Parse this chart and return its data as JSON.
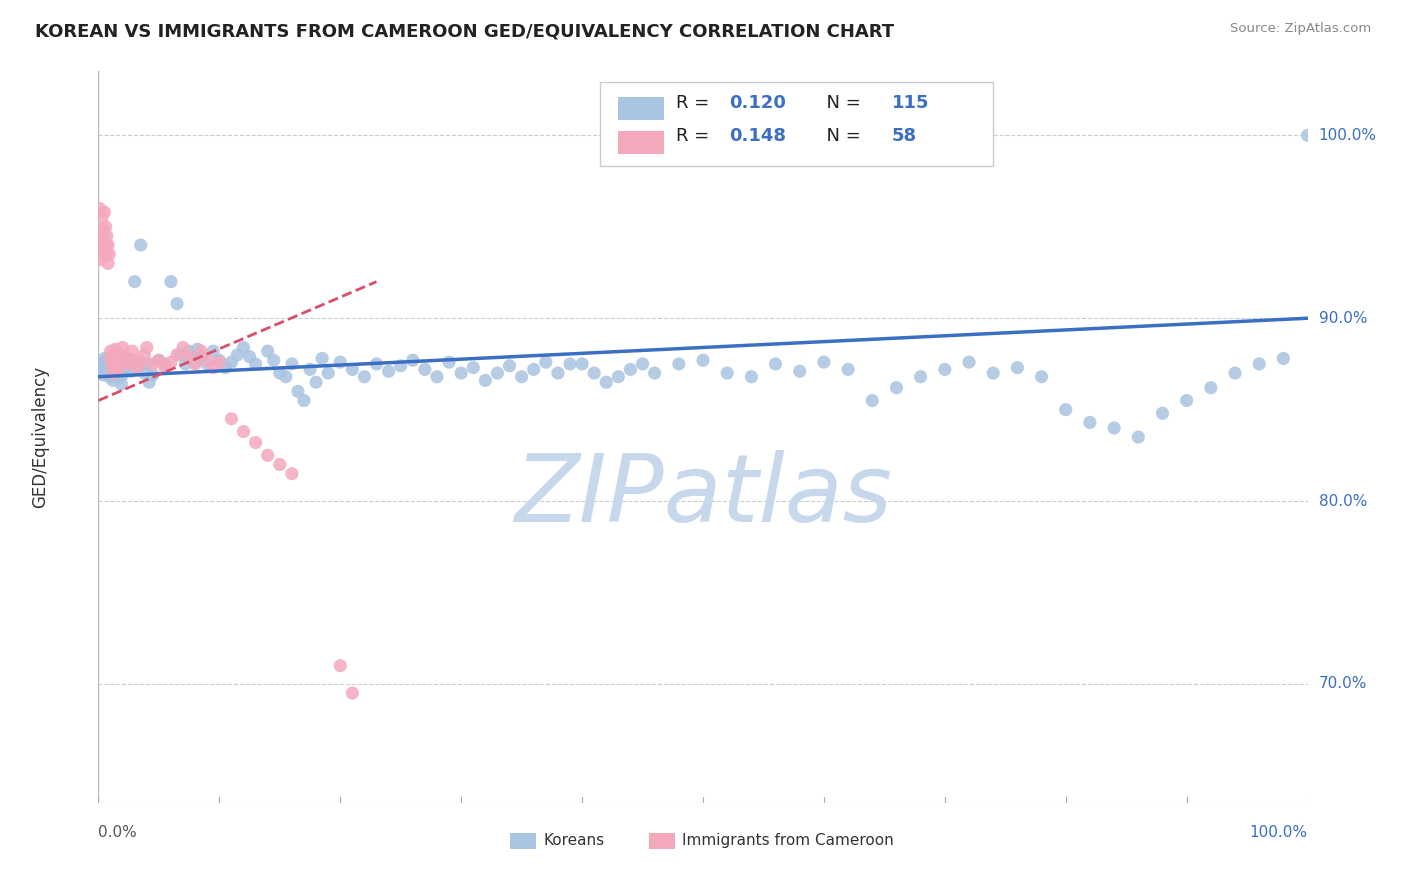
{
  "title": "KOREAN VS IMMIGRANTS FROM CAMEROON GED/EQUIVALENCY CORRELATION CHART",
  "source": "Source: ZipAtlas.com",
  "ylabel": "GED/Equivalency",
  "ytick_labels": [
    "70.0%",
    "80.0%",
    "90.0%",
    "100.0%"
  ],
  "ytick_values": [
    0.7,
    0.8,
    0.9,
    1.0
  ],
  "xrange": [
    0.0,
    1.0
  ],
  "yrange": [
    0.635,
    1.035
  ],
  "legend_label_blue": "Koreans",
  "legend_label_pink": "Immigrants from Cameroon",
  "blue_color": "#a8c4e0",
  "pink_color": "#f4a8bc",
  "blue_line_color": "#3a6fc4",
  "pink_line_color": "#d94f6a",
  "watermark": "ZIPatlas",
  "watermark_color": "#c8d8ec",
  "blue_trend_x": [
    0.0,
    1.0
  ],
  "blue_trend_y": [
    0.868,
    0.9
  ],
  "pink_trend_x": [
    0.0,
    0.23
  ],
  "pink_trend_y": [
    0.855,
    0.92
  ],
  "blue_scatter_x": [
    0.002,
    0.003,
    0.004,
    0.005,
    0.005,
    0.006,
    0.007,
    0.008,
    0.009,
    0.01,
    0.01,
    0.011,
    0.012,
    0.013,
    0.015,
    0.016,
    0.017,
    0.018,
    0.019,
    0.02,
    0.022,
    0.025,
    0.027,
    0.03,
    0.032,
    0.035,
    0.038,
    0.04,
    0.042,
    0.045,
    0.05,
    0.055,
    0.06,
    0.065,
    0.068,
    0.072,
    0.075,
    0.08,
    0.082,
    0.085,
    0.09,
    0.095,
    0.1,
    0.105,
    0.11,
    0.115,
    0.12,
    0.125,
    0.13,
    0.14,
    0.145,
    0.15,
    0.155,
    0.16,
    0.165,
    0.17,
    0.175,
    0.18,
    0.185,
    0.19,
    0.2,
    0.21,
    0.22,
    0.23,
    0.24,
    0.25,
    0.26,
    0.27,
    0.28,
    0.29,
    0.3,
    0.31,
    0.32,
    0.33,
    0.34,
    0.35,
    0.36,
    0.37,
    0.38,
    0.39,
    0.4,
    0.41,
    0.42,
    0.43,
    0.44,
    0.45,
    0.46,
    0.48,
    0.5,
    0.52,
    0.54,
    0.56,
    0.58,
    0.6,
    0.62,
    0.64,
    0.66,
    0.68,
    0.7,
    0.72,
    0.74,
    0.76,
    0.78,
    0.8,
    0.82,
    0.84,
    0.86,
    0.88,
    0.9,
    0.92,
    0.94,
    0.96,
    0.98,
    1.0
  ],
  "blue_scatter_y": [
    0.872,
    0.875,
    0.869,
    0.878,
    0.871,
    0.874,
    0.877,
    0.872,
    0.868,
    0.876,
    0.87,
    0.873,
    0.866,
    0.87,
    0.874,
    0.868,
    0.872,
    0.876,
    0.864,
    0.869,
    0.873,
    0.877,
    0.871,
    0.92,
    0.875,
    0.94,
    0.87,
    0.875,
    0.865,
    0.869,
    0.877,
    0.875,
    0.92,
    0.908,
    0.88,
    0.875,
    0.882,
    0.876,
    0.883,
    0.879,
    0.875,
    0.882,
    0.877,
    0.873,
    0.876,
    0.88,
    0.884,
    0.879,
    0.875,
    0.882,
    0.877,
    0.87,
    0.868,
    0.875,
    0.86,
    0.855,
    0.872,
    0.865,
    0.878,
    0.87,
    0.876,
    0.872,
    0.868,
    0.875,
    0.871,
    0.874,
    0.877,
    0.872,
    0.868,
    0.876,
    0.87,
    0.873,
    0.866,
    0.87,
    0.874,
    0.868,
    0.872,
    0.876,
    0.87,
    0.875,
    0.875,
    0.87,
    0.865,
    0.868,
    0.872,
    0.875,
    0.87,
    0.875,
    0.877,
    0.87,
    0.868,
    0.875,
    0.871,
    0.876,
    0.872,
    0.855,
    0.862,
    0.868,
    0.872,
    0.876,
    0.87,
    0.873,
    0.868,
    0.85,
    0.843,
    0.84,
    0.835,
    0.848,
    0.855,
    0.862,
    0.87,
    0.875,
    0.878,
    1.0
  ],
  "pink_scatter_x": [
    0.001,
    0.002,
    0.002,
    0.003,
    0.003,
    0.004,
    0.004,
    0.005,
    0.005,
    0.006,
    0.006,
    0.007,
    0.007,
    0.008,
    0.008,
    0.009,
    0.01,
    0.01,
    0.011,
    0.012,
    0.012,
    0.013,
    0.014,
    0.015,
    0.015,
    0.016,
    0.017,
    0.018,
    0.019,
    0.02,
    0.022,
    0.025,
    0.028,
    0.03,
    0.032,
    0.035,
    0.038,
    0.04,
    0.045,
    0.05,
    0.055,
    0.06,
    0.065,
    0.07,
    0.075,
    0.08,
    0.085,
    0.09,
    0.095,
    0.1,
    0.11,
    0.12,
    0.13,
    0.14,
    0.15,
    0.16,
    0.2,
    0.21
  ],
  "pink_scatter_y": [
    0.96,
    0.94,
    0.932,
    0.955,
    0.945,
    0.938,
    0.948,
    0.958,
    0.942,
    0.95,
    0.935,
    0.945,
    0.94,
    0.93,
    0.94,
    0.935,
    0.878,
    0.882,
    0.875,
    0.88,
    0.87,
    0.876,
    0.883,
    0.879,
    0.872,
    0.877,
    0.873,
    0.876,
    0.88,
    0.884,
    0.879,
    0.875,
    0.882,
    0.877,
    0.873,
    0.876,
    0.88,
    0.884,
    0.875,
    0.877,
    0.873,
    0.876,
    0.88,
    0.884,
    0.879,
    0.875,
    0.882,
    0.877,
    0.873,
    0.876,
    0.845,
    0.838,
    0.832,
    0.825,
    0.82,
    0.815,
    0.71,
    0.695
  ]
}
